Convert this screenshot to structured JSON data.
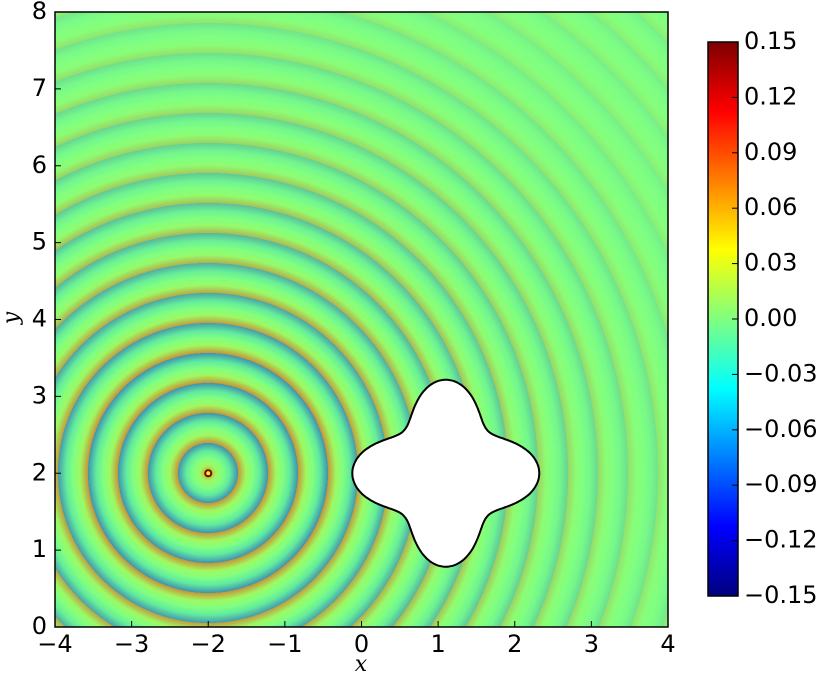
{
  "chart_data": {
    "type": "field",
    "xlabel": "x",
    "ylabel": "y",
    "xlim": [
      -4,
      4
    ],
    "ylim": [
      0,
      8
    ],
    "xticks": [
      {
        "value": -4,
        "label": "−4"
      },
      {
        "value": -3,
        "label": "−3"
      },
      {
        "value": -2,
        "label": "−2"
      },
      {
        "value": -1,
        "label": "−1"
      },
      0,
      1,
      2,
      3,
      4
    ],
    "yticks": [
      0,
      1,
      2,
      3,
      4,
      5,
      6,
      7,
      8
    ],
    "colormap": "jet",
    "clim": [
      -0.15,
      0.15
    ],
    "cticks": [
      {
        "value": -0.15,
        "label": "−0.15"
      },
      {
        "value": -0.12,
        "label": "−0.12"
      },
      {
        "value": -0.09,
        "label": "−0.09"
      },
      {
        "value": -0.06,
        "label": "−0.06"
      },
      {
        "value": -0.03,
        "label": "−0.03"
      },
      {
        "value": 0,
        "label": "0.00"
      },
      0.03,
      0.06,
      0.09,
      0.12,
      0.15
    ]
  }
}
